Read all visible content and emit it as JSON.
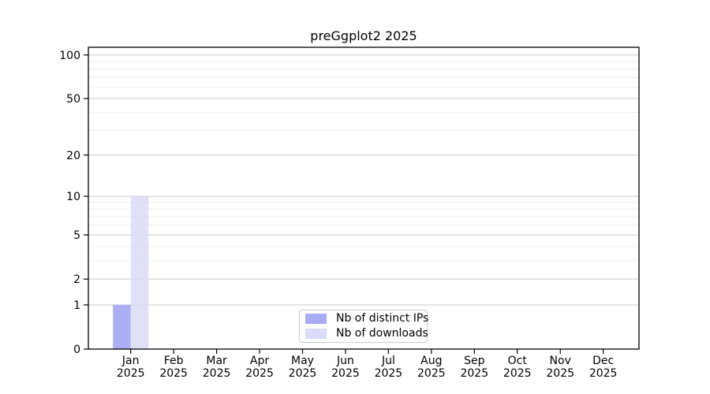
{
  "chart_data": {
    "type": "bar",
    "title": "preGgplot2 2025",
    "categories": [
      {
        "month": "Jan",
        "year": "2025"
      },
      {
        "month": "Feb",
        "year": "2025"
      },
      {
        "month": "Mar",
        "year": "2025"
      },
      {
        "month": "Apr",
        "year": "2025"
      },
      {
        "month": "May",
        "year": "2025"
      },
      {
        "month": "Jun",
        "year": "2025"
      },
      {
        "month": "Jul",
        "year": "2025"
      },
      {
        "month": "Aug",
        "year": "2025"
      },
      {
        "month": "Sep",
        "year": "2025"
      },
      {
        "month": "Oct",
        "year": "2025"
      },
      {
        "month": "Nov",
        "year": "2025"
      },
      {
        "month": "Dec",
        "year": "2025"
      }
    ],
    "series": [
      {
        "name": "Nb of distinct IPs",
        "color": "#a9abf4",
        "opacity": 0.95,
        "values": [
          1,
          0,
          0,
          0,
          0,
          0,
          0,
          0,
          0,
          0,
          0,
          0
        ]
      },
      {
        "name": "Nb of downloads",
        "color": "#d9dbf8",
        "opacity": 0.82,
        "values": [
          10,
          0,
          0,
          0,
          0,
          0,
          0,
          0,
          0,
          0,
          0,
          0
        ]
      }
    ],
    "xlabel": "",
    "ylabel": "",
    "yscale": "log1p",
    "ylim": [
      0,
      113
    ],
    "yticks": [
      0,
      1,
      2,
      5,
      10,
      20,
      50,
      100
    ],
    "yticks_minor": [
      3,
      4,
      6,
      7,
      8,
      9,
      30,
      40,
      60,
      70,
      80,
      90
    ],
    "grid": "both",
    "legend_position": "lower-center-inside"
  },
  "colors": {
    "spine": "#000000",
    "tick_text": "#000000",
    "grid_major": "#c9c9c9",
    "grid_minor": "#ececec",
    "legend_border": "#cccccc"
  }
}
